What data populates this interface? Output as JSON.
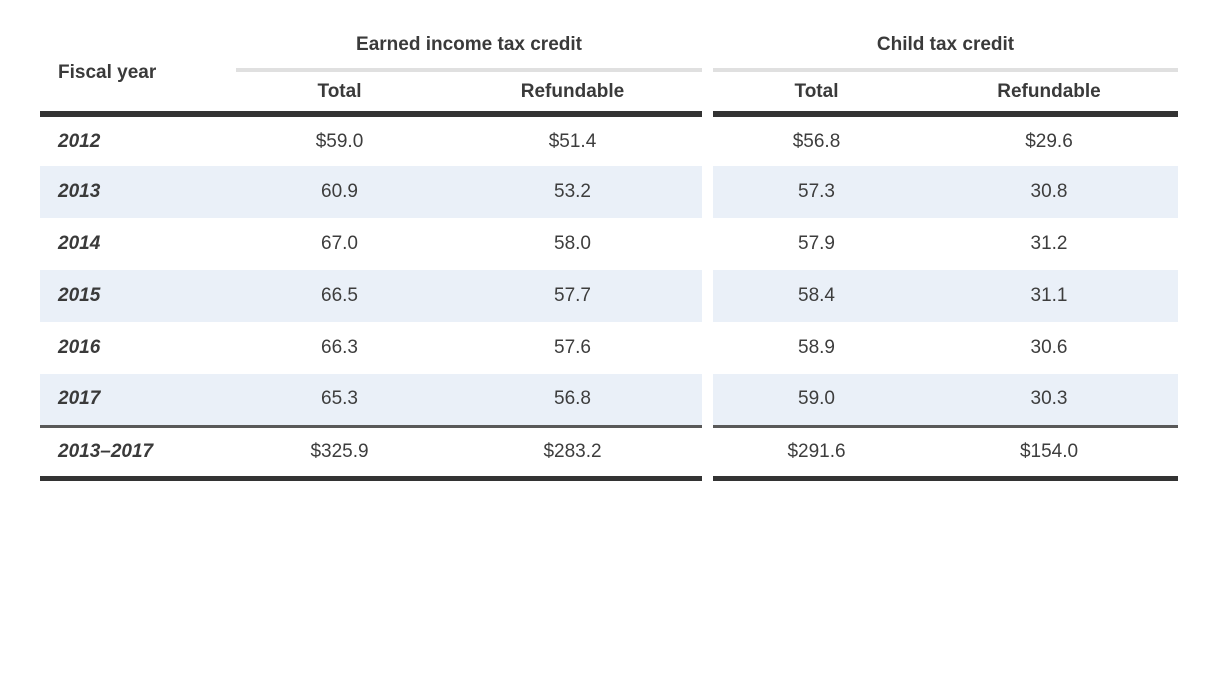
{
  "table": {
    "header": {
      "fiscal_year_label": "Fiscal year",
      "groups": [
        {
          "label": "Earned income tax credit",
          "subcolumns": {
            "total": "Total",
            "refundable": "Refundable"
          }
        },
        {
          "label": "Child tax credit",
          "subcolumns": {
            "total": "Total",
            "refundable": "Refundable"
          }
        }
      ]
    },
    "rows": [
      {
        "fiscal_year": "2012",
        "eitc_total": "$59.0",
        "eitc_refundable": "$51.4",
        "ctc_total": "$56.8",
        "ctc_refundable": "$29.6"
      },
      {
        "fiscal_year": "2013",
        "eitc_total": "60.9",
        "eitc_refundable": "53.2",
        "ctc_total": "57.3",
        "ctc_refundable": "30.8"
      },
      {
        "fiscal_year": "2014",
        "eitc_total": "67.0",
        "eitc_refundable": "58.0",
        "ctc_total": "57.9",
        "ctc_refundable": "31.2"
      },
      {
        "fiscal_year": "2015",
        "eitc_total": "66.5",
        "eitc_refundable": "57.7",
        "ctc_total": "58.4",
        "ctc_refundable": "31.1"
      },
      {
        "fiscal_year": "2016",
        "eitc_total": "66.3",
        "eitc_refundable": "57.6",
        "ctc_total": "58.9",
        "ctc_refundable": "30.6"
      },
      {
        "fiscal_year": "2017",
        "eitc_total": "65.3",
        "eitc_refundable": "56.8",
        "ctc_total": "59.0",
        "ctc_refundable": "30.3"
      }
    ],
    "total_row": {
      "fiscal_year": "2013–2017",
      "eitc_total": "$325.9",
      "eitc_refundable": "$283.2",
      "ctc_total": "$291.6",
      "ctc_refundable": "$154.0"
    },
    "colors": {
      "stripe": "#eaf0f8",
      "text": "#3a3a3a",
      "heavy_rule": "#333333",
      "medium_rule": "#595959",
      "light_rule": "#e0e0e0"
    }
  },
  "chart_data": {
    "type": "table",
    "title": "",
    "columns": [
      "Fiscal year",
      "Earned income tax credit — Total",
      "Earned income tax credit — Refundable",
      "Child tax credit — Total",
      "Child tax credit — Refundable"
    ],
    "rows": [
      [
        "2012",
        59.0,
        51.4,
        56.8,
        29.6
      ],
      [
        "2013",
        60.9,
        53.2,
        57.3,
        30.8
      ],
      [
        "2014",
        67.0,
        58.0,
        57.9,
        31.2
      ],
      [
        "2015",
        66.5,
        57.7,
        58.4,
        31.1
      ],
      [
        "2016",
        66.3,
        57.6,
        58.9,
        30.6
      ],
      [
        "2017",
        65.3,
        56.8,
        59.0,
        30.3
      ],
      [
        "2013–2017",
        325.9,
        283.2,
        291.6,
        154.0
      ]
    ],
    "layout_hints": {
      "zebra_striping": true,
      "group_header_gap_between_credit_groups": true,
      "totals_row_separated_by_rule": true
    }
  }
}
